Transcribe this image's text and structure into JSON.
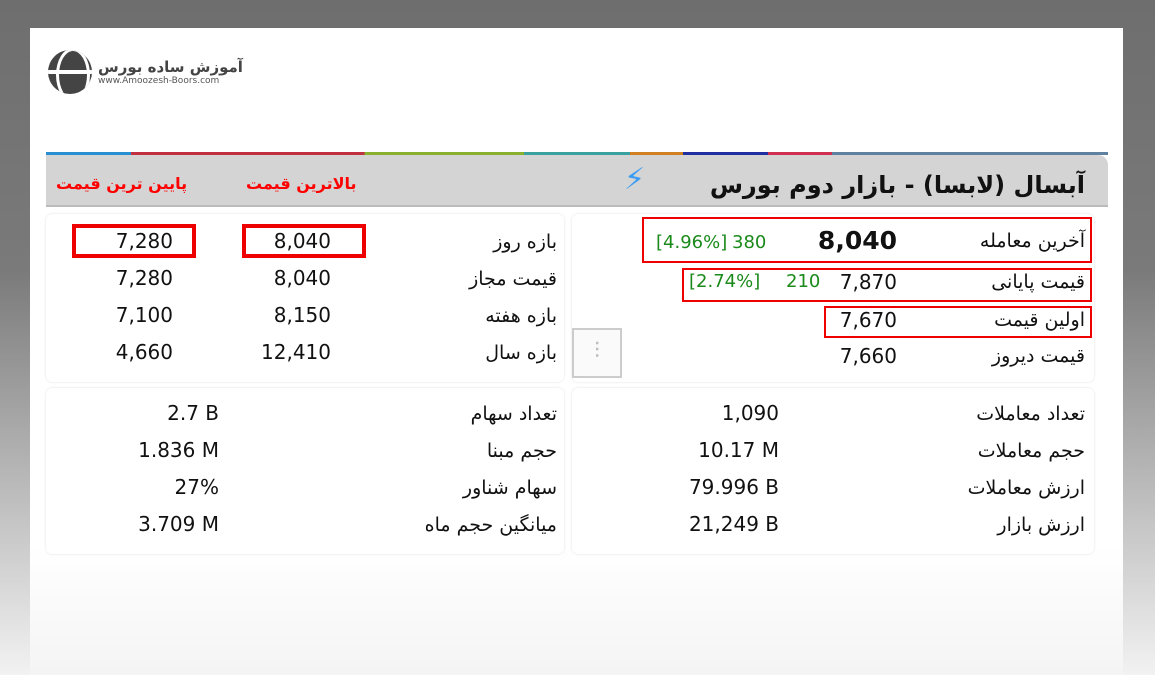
{
  "logo": {
    "name": "آموزش ساده بورس",
    "url": "www.Amoozesh-Boors.com"
  },
  "header": {
    "title": "آبسال (لابسا) - بازار دوم بورس",
    "icon": "lightning-icon",
    "col_high": "بالاترین قیمت",
    "col_low": "پایین ترین قیمت"
  },
  "prices": [
    {
      "label": "آخرین معامله",
      "value": "8,040",
      "change": "380",
      "percent": "[4.96%]"
    },
    {
      "label": "قیمت پایانی",
      "value": "7,870",
      "change": "210",
      "percent": "[2.74%]"
    },
    {
      "label": "اولین قیمت",
      "value": "7,670"
    },
    {
      "label": "قیمت دیروز",
      "value": "7,660"
    }
  ],
  "ranges": [
    {
      "label": "بازه روز",
      "high": "8,040",
      "low": "7,280"
    },
    {
      "label": "قیمت مجاز",
      "high": "8,040",
      "low": "7,280"
    },
    {
      "label": "بازه هفته",
      "high": "8,150",
      "low": "7,100"
    },
    {
      "label": "بازه سال",
      "high": "12,410",
      "low": "4,660"
    }
  ],
  "trade_stats": [
    {
      "label": "تعداد معاملات",
      "value": "1,090"
    },
    {
      "label": "حجم معاملات",
      "value": "10.17 M"
    },
    {
      "label": "ارزش معاملات",
      "value": "79.996 B"
    },
    {
      "label": "ارزش بازار",
      "value": "21,249 B"
    }
  ],
  "share_stats": [
    {
      "label": "تعداد سهام",
      "value": "2.7 B"
    },
    {
      "label": "حجم مبنا",
      "value": "1.836 M"
    },
    {
      "label": "سهام شناور",
      "value": "27%"
    },
    {
      "label": "میانگین حجم ماه",
      "value": "3.709 M"
    }
  ],
  "colors": {
    "highlight": "#ee0000",
    "positive": "#1a8a1a",
    "accent": "#3b9cf5"
  }
}
